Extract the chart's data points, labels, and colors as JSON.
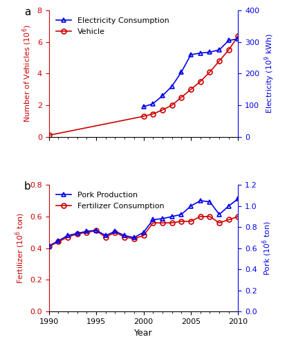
{
  "years_a": [
    1990,
    1991,
    1992,
    1993,
    1994,
    1995,
    1996,
    1997,
    1998,
    1999,
    2000,
    2001,
    2002,
    2003,
    2004,
    2005,
    2006,
    2007,
    2008,
    2009,
    2010
  ],
  "vehicle": [
    0.1,
    null,
    null,
    null,
    null,
    null,
    null,
    null,
    null,
    null,
    1.3,
    1.45,
    1.7,
    2.0,
    2.5,
    3.0,
    3.5,
    4.1,
    4.8,
    5.5,
    6.4
  ],
  "electricity_raw": [
    null,
    null,
    null,
    null,
    null,
    null,
    null,
    null,
    null,
    null,
    95,
    105,
    130,
    160,
    205,
    260,
    265,
    268,
    275,
    305,
    310
  ],
  "fertilizer": [
    0.41,
    0.44,
    0.47,
    0.49,
    0.5,
    0.51,
    0.47,
    0.5,
    0.47,
    0.46,
    0.48,
    0.56,
    0.56,
    0.56,
    0.57,
    0.57,
    0.6,
    0.6,
    0.56,
    0.58,
    0.6
  ],
  "pork_raw": [
    0.62,
    0.67,
    0.72,
    0.74,
    0.76,
    0.77,
    0.72,
    0.76,
    0.72,
    0.7,
    0.75,
    0.87,
    0.88,
    0.9,
    0.92,
    1.0,
    1.05,
    1.04,
    0.92,
    1.0,
    1.07
  ],
  "vehicle_ylim": [
    0,
    8
  ],
  "electricity_ylim": [
    0,
    400
  ],
  "fertilizer_ylim": [
    0,
    0.8
  ],
  "pork_ylim": [
    0,
    1.2
  ],
  "blue_color": "#0000EE",
  "red_color": "#CC0000",
  "xlabel": "Year",
  "ylabel_vehicle": "Number of Vehicles ($10^6$)",
  "ylabel_electricity": "Electricity ($10^9$ kWh)",
  "ylabel_fertilizer": "Fertilizer ($10^6$ ton)",
  "ylabel_pork": "Pork ($10^6$ ton)"
}
